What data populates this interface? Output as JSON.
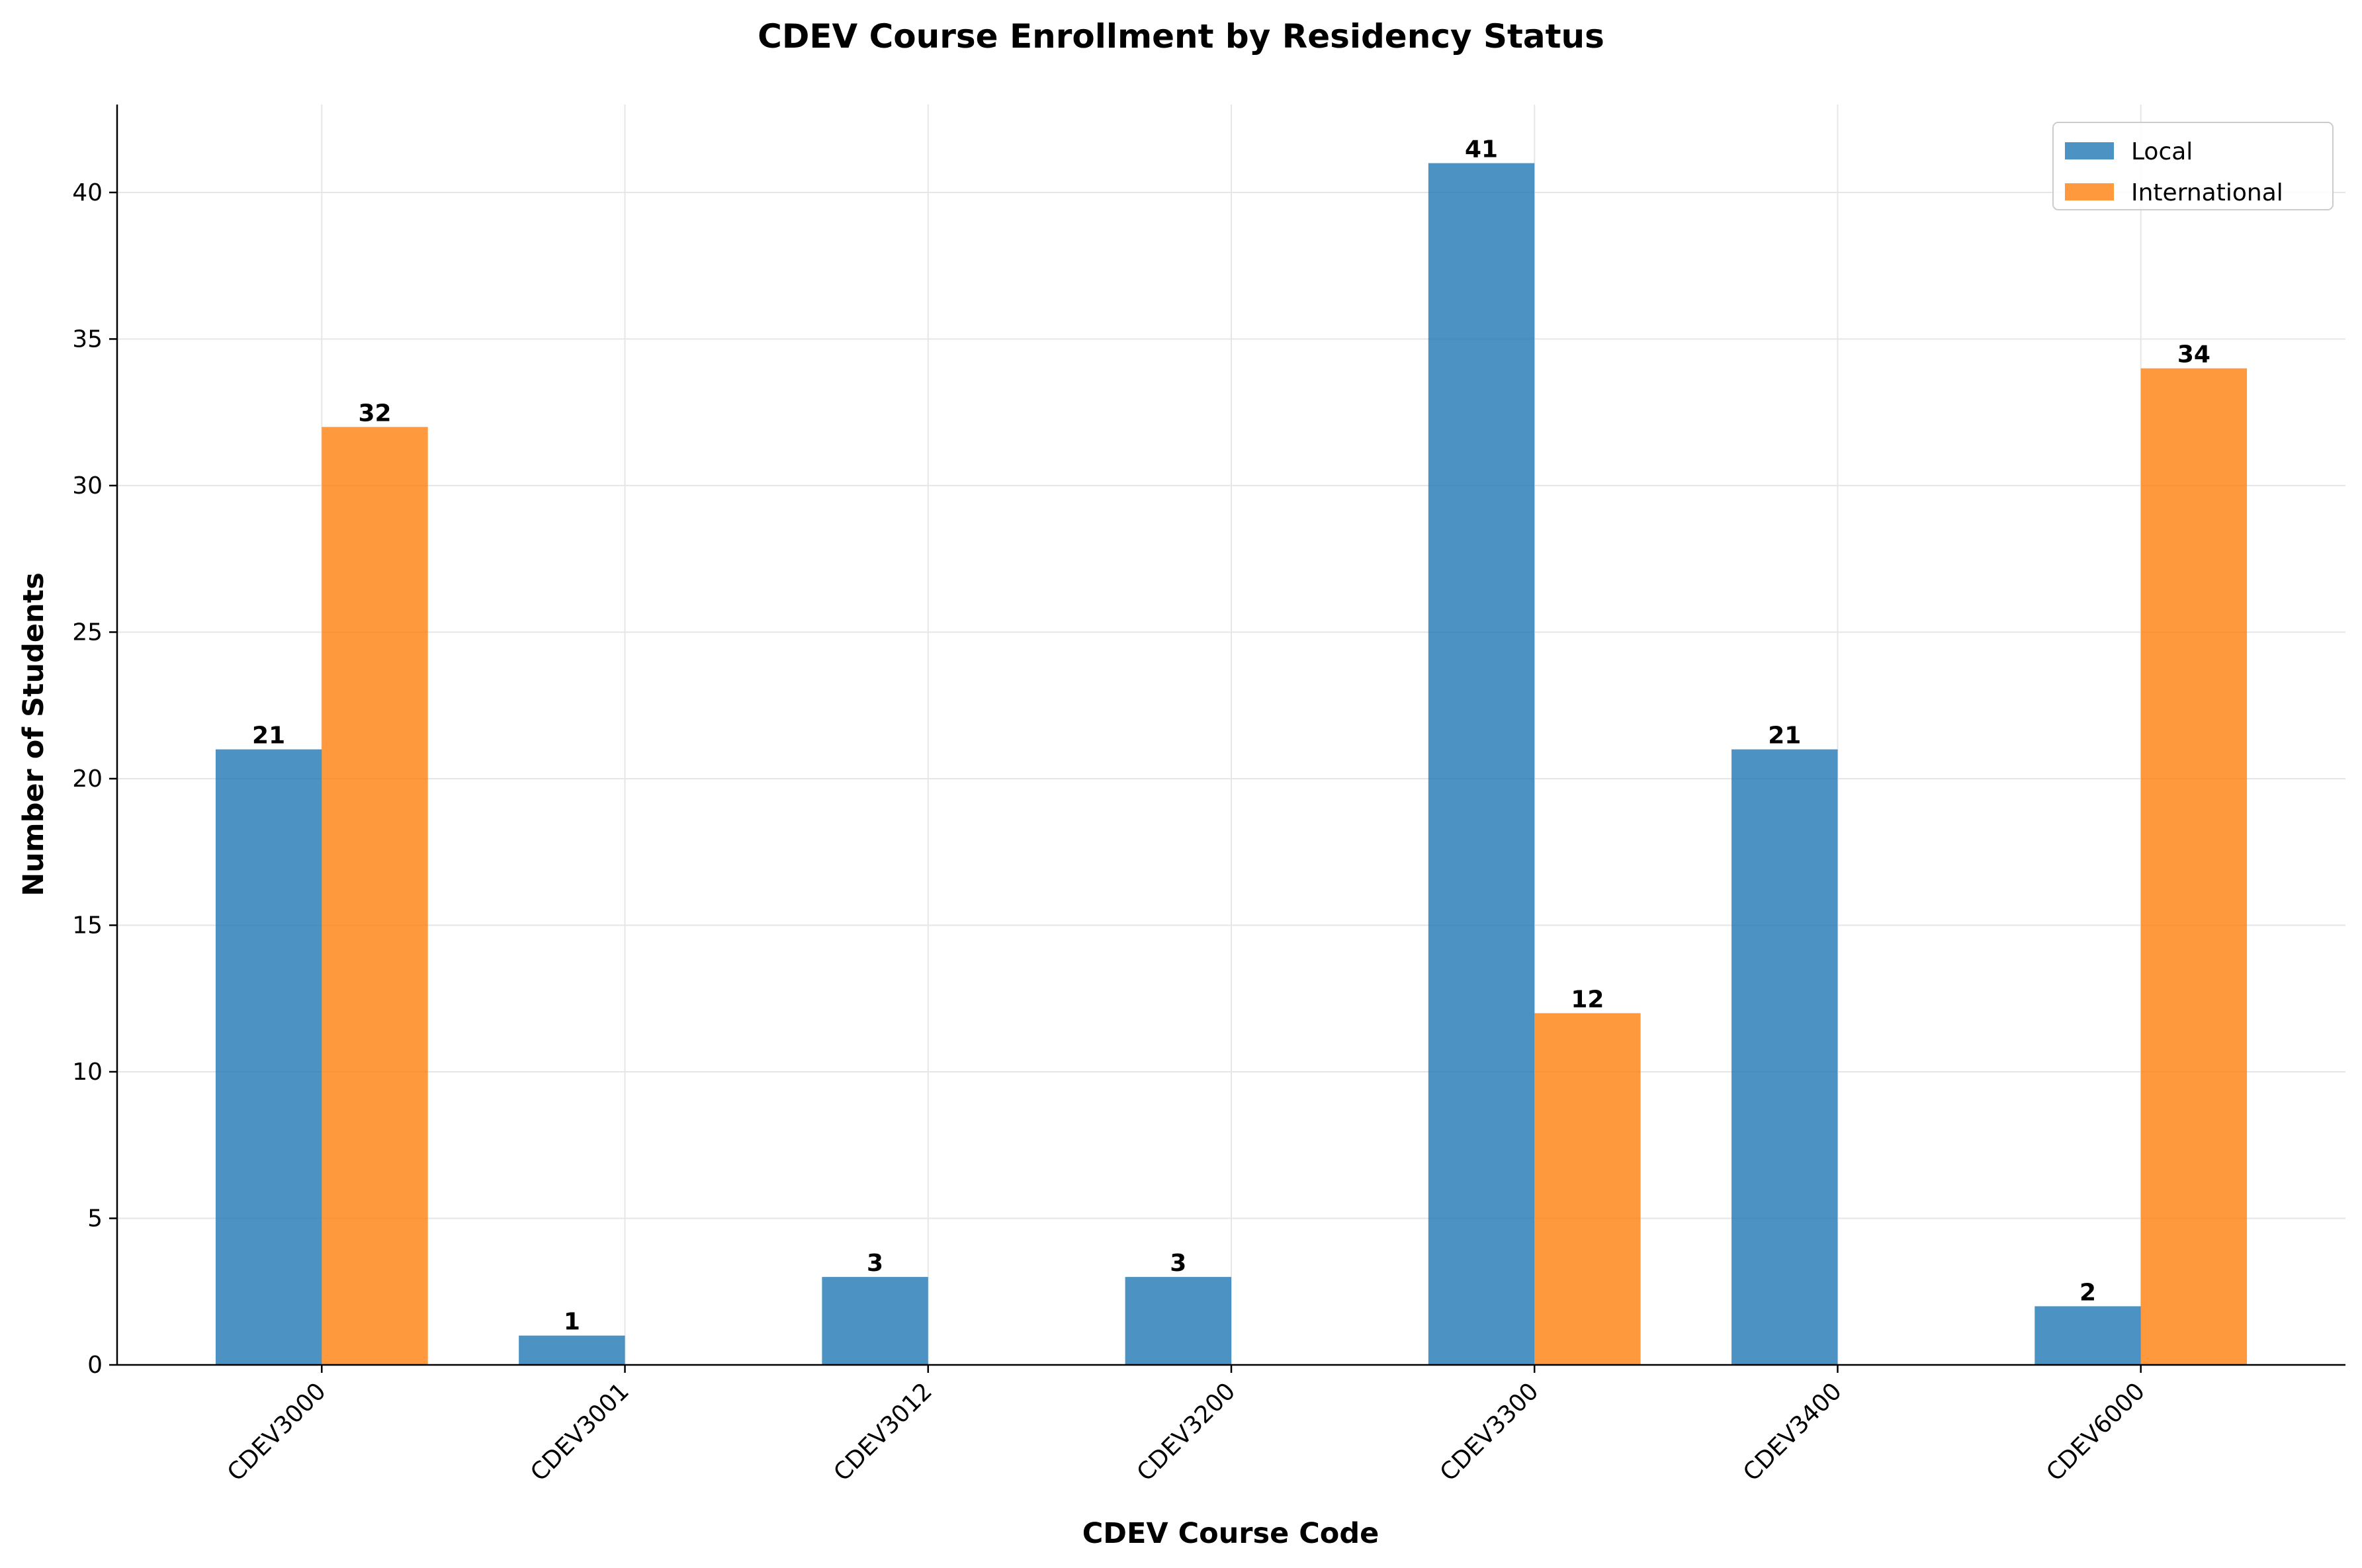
{
  "chart_data": {
    "type": "bar",
    "title": "CDEV Course Enrollment by Residency Status",
    "xlabel": "CDEV Course Code",
    "ylabel": "Number of Students",
    "categories": [
      "CDEV3000",
      "CDEV3001",
      "CDEV3012",
      "CDEV3200",
      "CDEV3300",
      "CDEV3400",
      "CDEV6000"
    ],
    "series": [
      {
        "name": "Local",
        "color": "#1f77b4",
        "values": [
          21,
          1,
          3,
          3,
          41,
          21,
          2
        ]
      },
      {
        "name": "International",
        "color": "#ff7f0e",
        "values": [
          32,
          0,
          0,
          0,
          12,
          0,
          34
        ]
      }
    ],
    "ylim": [
      0,
      43
    ],
    "yticks": [
      0,
      5,
      10,
      15,
      20,
      25,
      30,
      35,
      40
    ],
    "grid": true,
    "legend_position": "top-right"
  }
}
